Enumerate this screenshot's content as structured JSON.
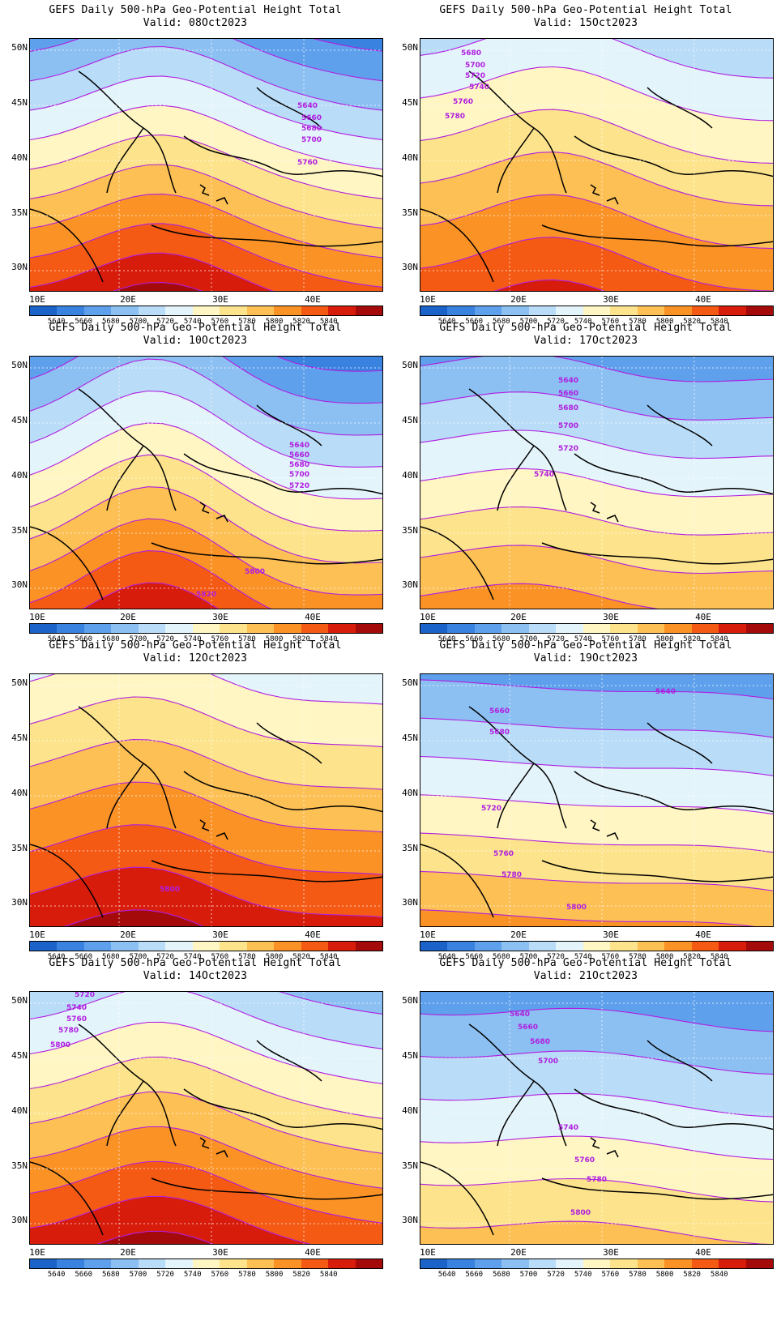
{
  "title_prefix": "GEFS Daily 500-hPa Geo-Potential Height Total",
  "panels": [
    {
      "valid": "Valid: 08Oct2023",
      "contour_labels": [
        "5640",
        "5660",
        "5680",
        "5700",
        "5760"
      ]
    },
    {
      "valid": "Valid: 15Oct2023",
      "contour_labels": [
        "5680",
        "5700",
        "5720",
        "5740",
        "5760",
        "5780"
      ]
    },
    {
      "valid": "Valid: 10Oct2023",
      "contour_labels": [
        "5640",
        "5660",
        "5680",
        "5700",
        "5720",
        "5800",
        "5820"
      ]
    },
    {
      "valid": "Valid: 17Oct2023",
      "contour_labels": [
        "5640",
        "5660",
        "5680",
        "5700",
        "5720",
        "5740"
      ]
    },
    {
      "valid": "Valid: 12Oct2023",
      "contour_labels": [
        "5800"
      ]
    },
    {
      "valid": "Valid: 19Oct2023",
      "contour_labels": [
        "5640",
        "5660",
        "5680",
        "5720",
        "5760",
        "5780",
        "5800"
      ]
    },
    {
      "valid": "Valid: 14Oct2023",
      "contour_labels": [
        "5720",
        "5740",
        "5760",
        "5780",
        "5800"
      ]
    },
    {
      "valid": "Valid: 21Oct2023",
      "contour_labels": [
        "5640",
        "5660",
        "5680",
        "5700",
        "5740",
        "5760",
        "5780",
        "5800"
      ]
    }
  ],
  "lat_labels": [
    "50N",
    "45N",
    "40N",
    "35N",
    "30N"
  ],
  "lon_labels": [
    "10E",
    "20E",
    "30E",
    "40E"
  ],
  "colorbar_labels": [
    "5640",
    "5660",
    "5680",
    "5700",
    "5720",
    "5740",
    "5760",
    "5780",
    "5800",
    "5820",
    "5840"
  ],
  "colorbar_colors": [
    "#1b63c9",
    "#3a82e0",
    "#5fa0ec",
    "#8cc0f3",
    "#b9dcf8",
    "#e4f4fb",
    "#fff6c4",
    "#fde48c",
    "#fdc055",
    "#fb9226",
    "#f55a14",
    "#d81c0c",
    "#a50a0a"
  ],
  "contour_color": "#b01ee0"
}
